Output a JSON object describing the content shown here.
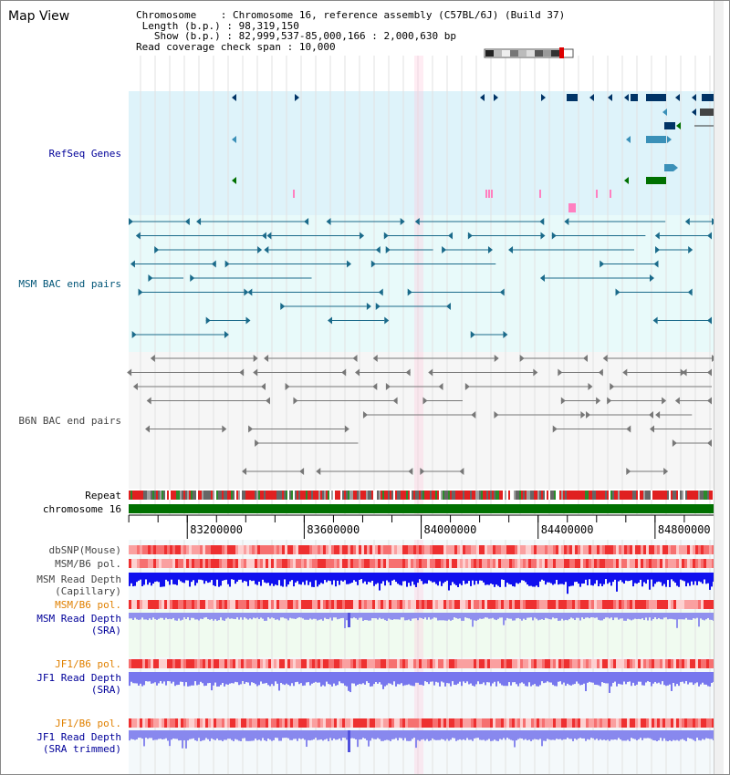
{
  "app": {
    "title": "Map View"
  },
  "info": {
    "chromosome_key": "Chromosome",
    "chromosome_value": "Chromosome 16, reference assembly (C57BL/6J) (Build 37)",
    "length_key": "Length (b.p.)",
    "length_value": "98,319,150",
    "show_key": "Show (b.p.)",
    "show_value": "82,999,537-85,000,166 : 2,000,630 bp",
    "coverage_key": "Read coverage check span",
    "coverage_value": "10,000"
  },
  "tracks": {
    "refseq": "RefSeq Genes",
    "msm_bac": "MSM BAC end pairs",
    "b6n_bac": "B6N BAC end pairs",
    "repeat": "Repeat",
    "chromosome": "chromosome 16",
    "dbsnp": "dbSNP(Mouse)",
    "msm_b6_pol": "MSM/B6 pol.",
    "msm_read_depth_cap_1": "MSM Read Depth",
    "msm_read_depth_cap_2": "(Capillary)",
    "msm_b6_pol_2": "MSM/B6 pol.",
    "msm_read_depth_sra_1": "MSM Read Depth",
    "msm_read_depth_sra_2": "(SRA)",
    "jf1_b6_pol": "JF1/B6 pol.",
    "jf1_read_depth_sra_1": "JF1 Read Depth",
    "jf1_read_depth_sra_2": "(SRA)",
    "jf1_b6_pol_2": "JF1/B6 pol.",
    "jf1_read_depth_trim_1": "JF1 Read Depth",
    "jf1_read_depth_trim_2": "(SRA trimmed)"
  },
  "ruler": {
    "ticks": [
      {
        "label": "83200000",
        "pos": 83200000
      },
      {
        "label": "83600000",
        "pos": 83600000
      },
      {
        "label": "84000000",
        "pos": 84000000
      },
      {
        "label": "84400000",
        "pos": 84400000
      },
      {
        "label": "84800000",
        "pos": 84800000
      }
    ]
  },
  "colors": {
    "refseq_bg": "#def3fa",
    "msm_bg": "#e8fafa",
    "b6n_bg": "#f6f6f6",
    "gene_dark": "#003366",
    "gene_mid": "#3a90b8",
    "gene_green": "#007000",
    "pink": "#ff80c0",
    "msm_line": "#1a6a8a",
    "b6n_line": "#777777",
    "chrom_green": "#007000",
    "depth_blue": "#1010ee",
    "depth_light": "#7777ee",
    "label_navy": "#000099",
    "label_orange": "#e08000",
    "label_teal": "#005577"
  }
}
